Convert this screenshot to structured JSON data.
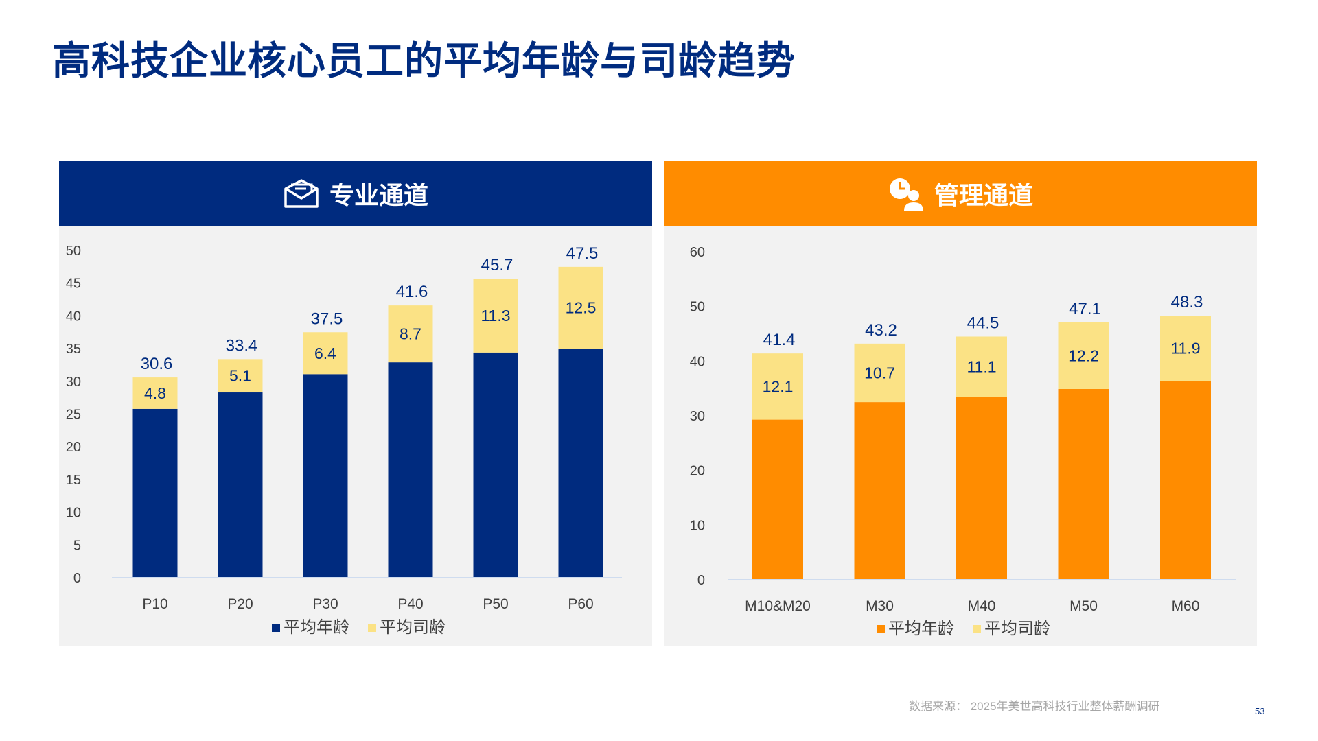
{
  "title": "高科技企业核心员工的平均年龄与司龄趋势",
  "footer": {
    "source": "数据来源：  2025年美世高科技行业整体薪酬调研",
    "page": "53"
  },
  "chart_data": [
    {
      "type": "bar",
      "stacked": true,
      "header": "专业通道",
      "header_icon": "envelope-icon",
      "header_color": "#002B7F",
      "categories": [
        "P10",
        "P20",
        "P30",
        "P40",
        "P50",
        "P60"
      ],
      "totals": [
        30.6,
        33.4,
        37.5,
        41.6,
        45.7,
        47.5
      ],
      "series": [
        {
          "name": "平均年龄",
          "color": "#002B7F",
          "values": [
            25.8,
            28.3,
            31.1,
            32.9,
            34.4,
            35.0
          ]
        },
        {
          "name": "平均司龄",
          "color": "#FBE285",
          "values": [
            4.8,
            5.1,
            6.4,
            8.7,
            11.3,
            12.5
          ]
        }
      ],
      "ylim": [
        0,
        50
      ],
      "yticks": [
        0,
        5,
        10,
        15,
        20,
        25,
        30,
        35,
        40,
        45,
        50
      ],
      "legend": "bottom",
      "grid": false
    },
    {
      "type": "bar",
      "stacked": true,
      "header": "管理通道",
      "header_icon": "manager-clock-icon",
      "header_color": "#FF8C00",
      "categories": [
        "M10&M20",
        "M30",
        "M40",
        "M50",
        "M60"
      ],
      "totals": [
        41.4,
        43.2,
        44.5,
        47.1,
        48.3
      ],
      "series": [
        {
          "name": "平均年龄",
          "color": "#FF8C00",
          "values": [
            29.3,
            32.5,
            33.4,
            34.9,
            36.4
          ]
        },
        {
          "name": "平均司龄",
          "color": "#FBE285",
          "values": [
            12.1,
            10.7,
            11.1,
            12.2,
            11.9
          ]
        }
      ],
      "ylim": [
        0,
        60
      ],
      "yticks": [
        0,
        10,
        20,
        30,
        40,
        50,
        60
      ],
      "legend": "bottom",
      "grid": false
    }
  ]
}
